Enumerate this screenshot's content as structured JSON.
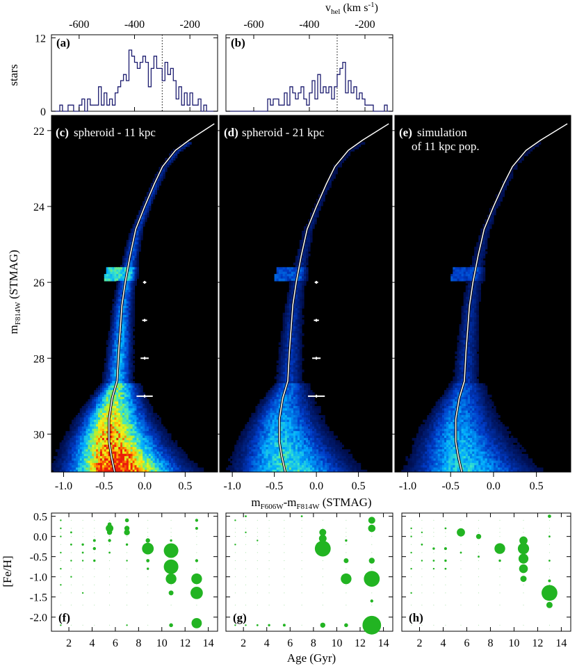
{
  "chart_data": {
    "type": "composite",
    "top_axis": {
      "label": "v",
      "label_sub": "hel",
      "label_unit": "(km s",
      "label_sup": "-1",
      "label_close": ")",
      "ticks": [
        -600,
        -400,
        -200
      ]
    },
    "histograms": {
      "type": "step",
      "ylabel": "stars",
      "yticks": [
        0,
        12
      ],
      "ylim": [
        0,
        12.5
      ],
      "xlim": [
        -700,
        -100
      ],
      "bin_width": 10,
      "zero_velocity_line": -300,
      "panels": [
        {
          "tag": "(a)",
          "counts": [
            0,
            0,
            0,
            1,
            0,
            0,
            1,
            1,
            0,
            0,
            1,
            2,
            0,
            2,
            1,
            1,
            1,
            4,
            1,
            3,
            1,
            2,
            1,
            3,
            4,
            5,
            6,
            5,
            10,
            9,
            8,
            7,
            8,
            9,
            8,
            4,
            7,
            9,
            7,
            7,
            5,
            8,
            6,
            7,
            5,
            2,
            4,
            1,
            3,
            1,
            3,
            1,
            1,
            2,
            0,
            1,
            0,
            0,
            0,
            0
          ]
        },
        {
          "tag": "(b)",
          "counts": [
            0,
            0,
            0,
            0,
            0,
            0,
            0,
            0,
            0,
            0,
            0,
            0,
            0,
            0,
            0,
            2,
            1,
            2,
            2,
            1,
            1,
            3,
            1,
            4,
            3,
            2,
            3,
            4,
            2,
            1,
            3,
            5,
            2,
            6,
            3,
            4,
            3,
            4,
            2,
            4,
            6,
            7,
            8,
            3,
            5,
            3,
            4,
            2,
            3,
            2,
            1,
            1,
            1,
            0,
            0,
            0,
            0,
            1,
            0,
            0
          ]
        }
      ]
    },
    "cmds": {
      "type": "heatmap",
      "xlabel_main": "m",
      "xlabel_sub1": "F606W",
      "xlabel_dash": "-m",
      "xlabel_sub2": "F814W",
      "xlabel_rest": " (STMAG)",
      "ylabel_main": "m",
      "ylabel_sub": "F814W",
      "ylabel_rest": " (STMAG)",
      "xlim": [
        -1.15,
        0.9
      ],
      "ylim": [
        31.0,
        21.6
      ],
      "xticks": [
        "-1.0",
        "-0.5",
        "0.0",
        "0.5"
      ],
      "yticks": [
        "22",
        "24",
        "26",
        "28",
        "30"
      ],
      "isochrone": [
        [
          0.86,
          21.82
        ],
        [
          0.55,
          22.25
        ],
        [
          0.38,
          22.52
        ],
        [
          0.22,
          22.95
        ],
        [
          0.12,
          23.4
        ],
        [
          0.0,
          24.0
        ],
        [
          -0.11,
          24.6
        ],
        [
          -0.18,
          25.3
        ],
        [
          -0.24,
          26.0
        ],
        [
          -0.28,
          26.6
        ],
        [
          -0.3,
          27.2
        ],
        [
          -0.32,
          27.8
        ],
        [
          -0.34,
          28.6
        ],
        [
          -0.4,
          29.05
        ],
        [
          -0.44,
          29.6
        ],
        [
          -0.44,
          30.2
        ],
        [
          -0.41,
          30.6
        ],
        [
          -0.37,
          31.0
        ]
      ],
      "error_bars": [
        {
          "mag": 26,
          "xerr": 0.02
        },
        {
          "mag": 27,
          "xerr": 0.03
        },
        {
          "mag": 28,
          "xerr": 0.05
        },
        {
          "mag": 29,
          "xerr": 0.1
        }
      ],
      "panels": [
        {
          "tag": "(c)",
          "label_lines": [
            "spheroid - 11 kpc"
          ],
          "density": 1.0,
          "error_bars": true
        },
        {
          "tag": "(d)",
          "label_lines": [
            "spheroid - 21 kpc"
          ],
          "density": 0.45,
          "error_bars": true
        },
        {
          "tag": "(e)",
          "label_lines": [
            "simulation",
            "of 11 kpc pop."
          ],
          "density": 0.4,
          "error_bars": false
        }
      ]
    },
    "sfh": {
      "type": "scatter",
      "xlabel": "Age (Gyr)",
      "ylabel": "[Fe/H]",
      "xlim": [
        0.5,
        14.8
      ],
      "ylim": [
        -2.35,
        0.58
      ],
      "xticks": [
        "2",
        "4",
        "6",
        "8",
        "10",
        "12",
        "14"
      ],
      "yticks": [
        "0.5",
        "0.0",
        "-0.5",
        "-1.0",
        "-1.5",
        "-2.0"
      ],
      "marker_color": "#22b422",
      "ages": [
        1.3,
        2.2,
        3.2,
        4.2,
        5.5,
        7.0,
        8.8,
        10.8,
        13.0
      ],
      "fehs": [
        0.4,
        0.2,
        0.1,
        0.0,
        -0.2,
        -0.4,
        -0.6,
        -0.8,
        -1.0,
        -1.2,
        -1.4,
        -1.7,
        -2.2
      ],
      "panels": [
        {
          "tag": "(f)",
          "points": [
            {
              "age": 1.3,
              "feh": 0.4,
              "w": 1
            },
            {
              "age": 1.3,
              "feh": 0.2,
              "w": 1
            },
            {
              "age": 1.3,
              "feh": 0.0,
              "w": 1
            },
            {
              "age": 1.3,
              "feh": -0.4,
              "w": 1
            },
            {
              "age": 1.3,
              "feh": -0.8,
              "w": 1
            },
            {
              "age": 1.3,
              "feh": -1.2,
              "w": 0.5
            },
            {
              "age": 1.3,
              "feh": -2.2,
              "w": 0.5
            },
            {
              "age": 2.2,
              "feh": 0.1,
              "w": 2
            },
            {
              "age": 2.2,
              "feh": -0.2,
              "w": 2
            },
            {
              "age": 2.2,
              "feh": -0.6,
              "w": 1
            },
            {
              "age": 2.2,
              "feh": -1.0,
              "w": 1
            },
            {
              "age": 3.2,
              "feh": -0.2,
              "w": 3
            },
            {
              "age": 3.2,
              "feh": -0.4,
              "w": 2
            },
            {
              "age": 3.2,
              "feh": -0.6,
              "w": 1
            },
            {
              "age": 3.2,
              "feh": -1.4,
              "w": 1
            },
            {
              "age": 4.2,
              "feh": -0.1,
              "w": 4
            },
            {
              "age": 4.2,
              "feh": -0.3,
              "w": 5
            },
            {
              "age": 4.2,
              "feh": -0.6,
              "w": 3
            },
            {
              "age": 5.5,
              "feh": 0.3,
              "w": 8
            },
            {
              "age": 5.5,
              "feh": 0.2,
              "w": 30
            },
            {
              "age": 5.5,
              "feh": 0.1,
              "w": 14
            },
            {
              "age": 5.5,
              "feh": -0.1,
              "w": 5
            },
            {
              "age": 5.5,
              "feh": -0.4,
              "w": 2
            },
            {
              "age": 7.0,
              "feh": 0.4,
              "w": 8
            },
            {
              "age": 7.0,
              "feh": 0.2,
              "w": 14
            },
            {
              "age": 7.0,
              "feh": 0.1,
              "w": 18
            },
            {
              "age": 7.0,
              "feh": -0.2,
              "w": 3
            },
            {
              "age": 7.0,
              "feh": -0.6,
              "w": 1
            },
            {
              "age": 7.0,
              "feh": -2.2,
              "w": 1
            },
            {
              "age": 8.8,
              "feh": -0.1,
              "w": 10
            },
            {
              "age": 8.8,
              "feh": -0.3,
              "w": 70
            },
            {
              "age": 8.8,
              "feh": -0.6,
              "w": 6
            },
            {
              "age": 8.8,
              "feh": -0.8,
              "w": 3
            },
            {
              "age": 10.8,
              "feh": -0.1,
              "w": 3
            },
            {
              "age": 10.8,
              "feh": -0.35,
              "w": 110
            },
            {
              "age": 10.8,
              "feh": -0.75,
              "w": 110
            },
            {
              "age": 10.8,
              "feh": -1.05,
              "w": 60
            },
            {
              "age": 10.8,
              "feh": -1.4,
              "w": 12
            },
            {
              "age": 10.8,
              "feh": -2.2,
              "w": 8
            },
            {
              "age": 13.0,
              "feh": 0.4,
              "w": 5
            },
            {
              "age": 13.0,
              "feh": 0.2,
              "w": 4
            },
            {
              "age": 13.0,
              "feh": -0.6,
              "w": 5
            },
            {
              "age": 13.0,
              "feh": -1.05,
              "w": 60
            },
            {
              "age": 13.0,
              "feh": -1.4,
              "w": 80
            },
            {
              "age": 13.0,
              "feh": -2.15,
              "w": 55
            }
          ]
        },
        {
          "tag": "(g)",
          "points": [
            {
              "age": 1.3,
              "feh": 0.4,
              "w": 0.5
            },
            {
              "age": 1.3,
              "feh": -0.2,
              "w": 0.5
            },
            {
              "age": 1.3,
              "feh": -2.2,
              "w": 0.5
            },
            {
              "age": 2.2,
              "feh": 0.5,
              "w": 2
            },
            {
              "age": 2.2,
              "feh": 0.1,
              "w": 1
            },
            {
              "age": 2.2,
              "feh": -2.2,
              "w": 1
            },
            {
              "age": 3.2,
              "feh": -0.1,
              "w": 1
            },
            {
              "age": 3.2,
              "feh": -2.2,
              "w": 2
            },
            {
              "age": 4.2,
              "feh": -2.2,
              "w": 3
            },
            {
              "age": 5.5,
              "feh": -2.2,
              "w": 4
            },
            {
              "age": 7.0,
              "feh": 0.5,
              "w": 2
            },
            {
              "age": 8.8,
              "feh": 0.1,
              "w": 25
            },
            {
              "age": 8.8,
              "feh": -0.05,
              "w": 30
            },
            {
              "age": 8.8,
              "feh": -0.3,
              "w": 130
            },
            {
              "age": 8.8,
              "feh": -2.2,
              "w": 14
            },
            {
              "age": 10.8,
              "feh": -0.1,
              "w": 3
            },
            {
              "age": 10.8,
              "feh": -0.6,
              "w": 12
            },
            {
              "age": 10.8,
              "feh": -1.05,
              "w": 60
            },
            {
              "age": 10.8,
              "feh": -2.2,
              "w": 8
            },
            {
              "age": 13.0,
              "feh": 0.4,
              "w": 25
            },
            {
              "age": 13.0,
              "feh": 0.2,
              "w": 28
            },
            {
              "age": 13.0,
              "feh": -0.6,
              "w": 18
            },
            {
              "age": 13.0,
              "feh": -1.05,
              "w": 130
            },
            {
              "age": 13.0,
              "feh": -1.6,
              "w": 5
            },
            {
              "age": 13.0,
              "feh": -2.2,
              "w": 180
            }
          ]
        },
        {
          "tag": "(h)",
          "points": [
            {
              "age": 1.3,
              "feh": 0.2,
              "w": 1
            },
            {
              "age": 1.3,
              "feh": 0.0,
              "w": 1
            },
            {
              "age": 1.3,
              "feh": -0.4,
              "w": 1
            },
            {
              "age": 1.3,
              "feh": -0.8,
              "w": 1
            },
            {
              "age": 1.3,
              "feh": -1.4,
              "w": 0.5
            },
            {
              "age": 2.2,
              "feh": 0.1,
              "w": 1
            },
            {
              "age": 2.2,
              "feh": -0.2,
              "w": 2
            },
            {
              "age": 2.2,
              "feh": -0.6,
              "w": 1
            },
            {
              "age": 3.2,
              "feh": -0.3,
              "w": 3
            },
            {
              "age": 3.2,
              "feh": -0.6,
              "w": 2
            },
            {
              "age": 3.2,
              "feh": -0.8,
              "w": 1
            },
            {
              "age": 4.2,
              "feh": 0.2,
              "w": 2
            },
            {
              "age": 4.2,
              "feh": -0.3,
              "w": 4
            },
            {
              "age": 4.2,
              "feh": -0.6,
              "w": 3
            },
            {
              "age": 4.2,
              "feh": -0.8,
              "w": 2
            },
            {
              "age": 5.5,
              "feh": 0.1,
              "w": 35
            },
            {
              "age": 5.5,
              "feh": -0.4,
              "w": 2
            },
            {
              "age": 7.0,
              "feh": 0.0,
              "w": 14
            },
            {
              "age": 7.0,
              "feh": -0.5,
              "w": 2
            },
            {
              "age": 8.8,
              "feh": -0.3,
              "w": 60
            },
            {
              "age": 8.8,
              "feh": -0.6,
              "w": 3
            },
            {
              "age": 10.8,
              "feh": -0.1,
              "w": 35
            },
            {
              "age": 10.8,
              "feh": -0.3,
              "w": 65
            },
            {
              "age": 10.8,
              "feh": -0.55,
              "w": 50
            },
            {
              "age": 10.8,
              "feh": -0.8,
              "w": 40
            },
            {
              "age": 10.8,
              "feh": -1.05,
              "w": 20
            },
            {
              "age": 13.0,
              "feh": 0.5,
              "w": 6
            },
            {
              "age": 13.0,
              "feh": 0.0,
              "w": 2
            },
            {
              "age": 13.0,
              "feh": -0.6,
              "w": 2
            },
            {
              "age": 13.0,
              "feh": -1.1,
              "w": 4
            },
            {
              "age": 13.0,
              "feh": -1.4,
              "w": 130
            },
            {
              "age": 13.0,
              "feh": -1.7,
              "w": 20
            }
          ]
        }
      ]
    }
  }
}
